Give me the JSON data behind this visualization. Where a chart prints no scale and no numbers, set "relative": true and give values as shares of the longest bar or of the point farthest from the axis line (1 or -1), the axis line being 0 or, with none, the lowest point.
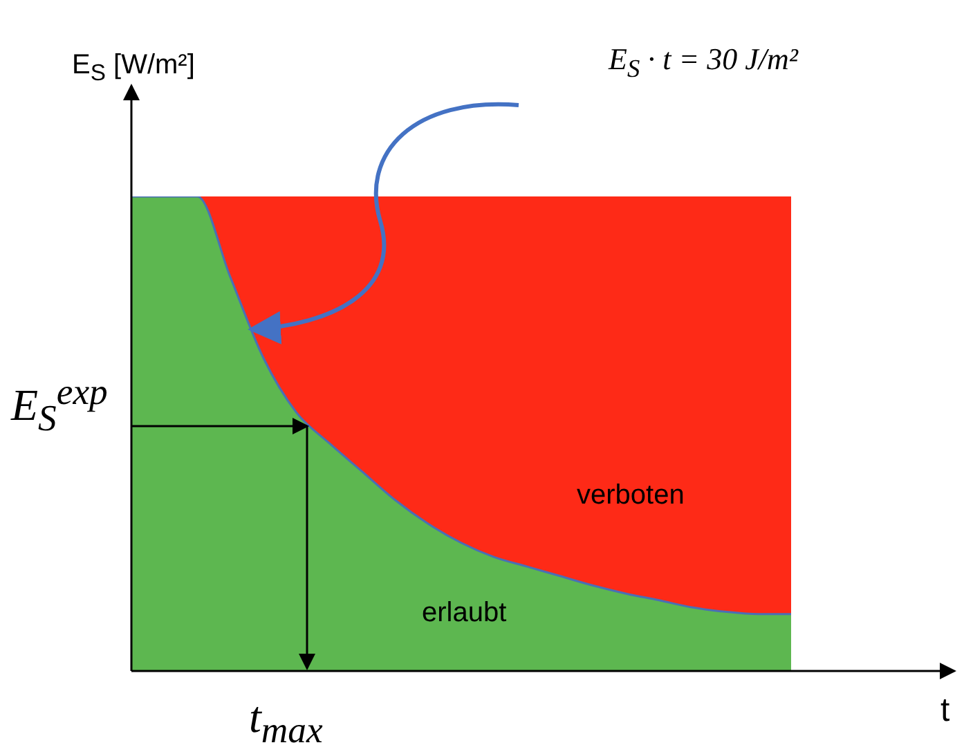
{
  "chart_data": {
    "type": "area",
    "relative": true,
    "stacked": true,
    "xlabel": "t",
    "ylabel": "E$_{S}$ [W/m²]",
    "annotations": [
      "E$_{S}$ · t = 30 J/m²",
      "verboten",
      "erlaubt",
      "E$_{S}$$^{exp}$",
      "t$_{max}$"
    ],
    "categories": [
      null,
      null,
      null,
      null,
      null,
      null,
      null,
      null,
      null,
      null,
      null,
      null,
      null,
      null,
      null,
      null,
      null,
      null,
      null,
      null,
      null
    ],
    "series": [
      {
        "color": "#5db750",
        "values": [
          1,
          1,
          1,
          0.83,
          0.66,
          0.545,
          0.48,
          0.42,
          0.36,
          0.31,
          0.27,
          0.24,
          0.22,
          0.2,
          0.18,
          0.163,
          0.149,
          0.134,
          0.125,
          0.12,
          0.12
        ]
      },
      {
        "color": "#fe2a17",
        "values": [
          0,
          0,
          0,
          0.17,
          0.34,
          0.455,
          0.52,
          0.58,
          0.64,
          0.69,
          0.73,
          0.76,
          0.78,
          0.8,
          0.82,
          0.837,
          0.851,
          0.866,
          0.875,
          0.88,
          0.88
        ]
      }
    ]
  }
}
